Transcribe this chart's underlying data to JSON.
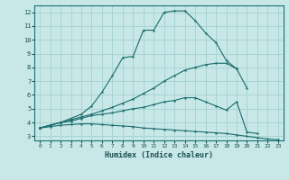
{
  "xlabel": "Humidex (Indice chaleur)",
  "bg_color": "#c8e8e8",
  "line_color": "#1a6b6b",
  "grid_color": "#a8d4d4",
  "xlim": [
    -0.5,
    23.5
  ],
  "ylim": [
    2.7,
    12.5
  ],
  "xticks": [
    0,
    1,
    2,
    3,
    4,
    5,
    6,
    7,
    8,
    9,
    10,
    11,
    12,
    13,
    14,
    15,
    16,
    17,
    18,
    19,
    20,
    21,
    22,
    23
  ],
  "yticks": [
    3,
    4,
    5,
    6,
    7,
    8,
    9,
    10,
    11,
    12
  ],
  "curves": [
    {
      "x": [
        0,
        1,
        2,
        3,
        4,
        5,
        6,
        7,
        8,
        9,
        10,
        11,
        12,
        13,
        14,
        15,
        16,
        17,
        18,
        19
      ],
      "y": [
        3.6,
        3.8,
        4.0,
        4.3,
        4.6,
        5.2,
        6.2,
        7.4,
        8.7,
        8.8,
        10.7,
        10.7,
        12.0,
        12.1,
        12.1,
        11.4,
        10.5,
        9.8,
        8.5,
        7.9
      ]
    },
    {
      "x": [
        0,
        1,
        2,
        3,
        4,
        5,
        6,
        7,
        8,
        9,
        10,
        11,
        12,
        13,
        14,
        15,
        16,
        17,
        18,
        19,
        20
      ],
      "y": [
        3.6,
        3.8,
        4.0,
        4.2,
        4.4,
        4.6,
        4.85,
        5.1,
        5.4,
        5.7,
        6.1,
        6.5,
        7.0,
        7.4,
        7.8,
        8.0,
        8.2,
        8.3,
        8.3,
        7.9,
        6.5
      ]
    },
    {
      "x": [
        0,
        1,
        2,
        3,
        4,
        5,
        6,
        7,
        8,
        9,
        10,
        11,
        12,
        13,
        14,
        15,
        16,
        17,
        18,
        19,
        20,
        21
      ],
      "y": [
        3.6,
        3.8,
        4.0,
        4.1,
        4.3,
        4.5,
        4.6,
        4.7,
        4.85,
        5.0,
        5.1,
        5.3,
        5.5,
        5.6,
        5.8,
        5.8,
        5.5,
        5.2,
        4.9,
        5.5,
        3.3,
        3.2
      ]
    },
    {
      "x": [
        0,
        1,
        2,
        3,
        4,
        5,
        6,
        7,
        8,
        9,
        10,
        11,
        12,
        13,
        14,
        15,
        16,
        17,
        18,
        19,
        20,
        21,
        22,
        23
      ],
      "y": [
        3.6,
        3.7,
        3.8,
        3.85,
        3.9,
        3.9,
        3.85,
        3.8,
        3.75,
        3.7,
        3.6,
        3.55,
        3.5,
        3.45,
        3.4,
        3.35,
        3.3,
        3.25,
        3.2,
        3.1,
        3.0,
        2.9,
        2.8,
        2.75
      ]
    }
  ]
}
